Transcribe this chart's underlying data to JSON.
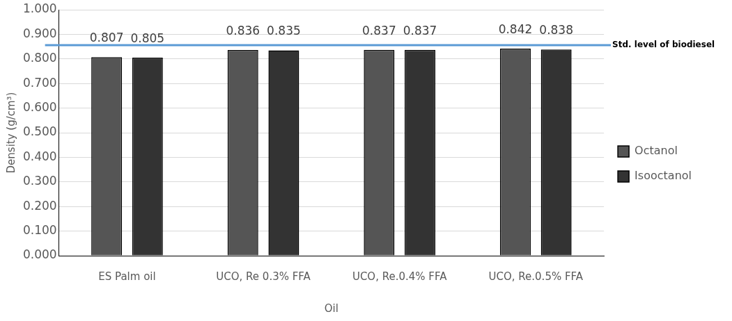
{
  "chart_data": {
    "type": "bar",
    "xlabel": "Oil",
    "ylabel": "Density (g/cm³)",
    "categories": [
      "ES Palm oil",
      "UCO, Re 0.3% FFA",
      "UCO, Re.0.4% FFA",
      "UCO, Re.0.5% FFA"
    ],
    "series": [
      {
        "name": "Octanol",
        "color": "#555555",
        "values": [
          0.807,
          0.836,
          0.837,
          0.842
        ]
      },
      {
        "name": "Isooctanol",
        "color": "#333333",
        "values": [
          0.805,
          0.835,
          0.837,
          0.838
        ]
      }
    ],
    "ylim": [
      0,
      1
    ],
    "yticks": [
      {
        "value": 0,
        "label": "0.000"
      },
      {
        "value": 0.1,
        "label": "0.100"
      },
      {
        "value": 0.2,
        "label": "0.200"
      },
      {
        "value": 0.3,
        "label": "0.300"
      },
      {
        "value": 0.4,
        "label": "0.400"
      },
      {
        "value": 0.5,
        "label": "0.500"
      },
      {
        "value": 0.6,
        "label": "0.600"
      },
      {
        "value": 0.7,
        "label": "0.700"
      },
      {
        "value": 0.8,
        "label": "0.800"
      },
      {
        "value": 0.9,
        "label": "0.900"
      },
      {
        "value": 1,
        "label": "1.000"
      }
    ],
    "ref_lines": [
      {
        "axis": "y",
        "value": 0.856,
        "label": "Std. level of biodiesel",
        "color": "#5b9bd5"
      }
    ],
    "grid": "y",
    "legend": "right",
    "data_labels": true
  }
}
